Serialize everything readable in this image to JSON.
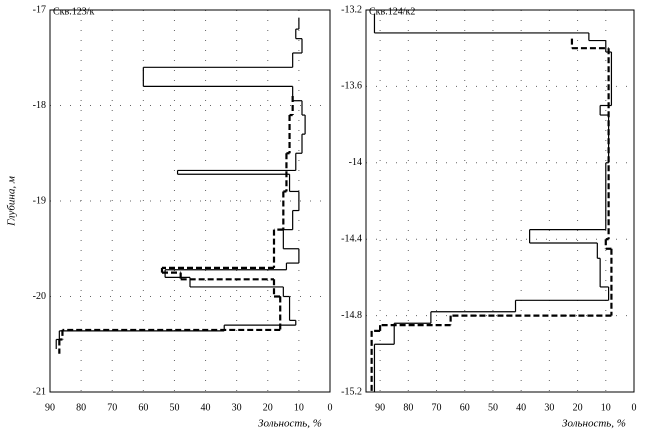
{
  "chart_data": [
    {
      "type": "step",
      "title": "Скв.123/к",
      "ylabel": "Глубина, м",
      "xlabel": "Зольность, %",
      "xlim": [
        90,
        0
      ],
      "ylim": [
        -21,
        -17
      ],
      "xticks": [
        90,
        80,
        70,
        60,
        50,
        40,
        30,
        20,
        10,
        0
      ],
      "yticks": [
        -17,
        -18,
        -19,
        -20,
        -21
      ],
      "grid": true,
      "series": [
        {
          "line_style": "solid",
          "color": "#000000",
          "bins": [
            -17.08,
            -17.2,
            -17.3,
            -17.45,
            -17.6,
            -17.8,
            -17.95,
            -18.1,
            -18.3,
            -18.5,
            -18.68,
            -18.72,
            -18.9,
            -19.1,
            -19.3,
            -19.5,
            -19.65,
            -19.72,
            -19.8,
            -19.9,
            -20.0,
            -20.25,
            -20.3,
            -20.36,
            -20.45,
            -20.55
          ],
          "values": [
            10,
            11,
            9,
            12,
            60,
            12,
            9,
            8,
            9,
            11,
            49,
            13,
            10,
            12,
            15,
            10,
            14,
            53,
            45,
            15,
            13,
            11,
            34,
            87,
            88
          ]
        },
        {
          "line_style": "dashed",
          "color": "#000000",
          "bins": [
            -17.9,
            -18.1,
            -18.5,
            -18.9,
            -19.3,
            -19.7,
            -19.75,
            -19.82,
            -20.0,
            -20.35,
            -20.45,
            -20.6
          ],
          "values": [
            12,
            13,
            14,
            15,
            18,
            54,
            48,
            18,
            16,
            86,
            87
          ]
        }
      ]
    },
    {
      "type": "step",
      "title": "Скв.124/к2",
      "xlabel": "Зольность, %",
      "xlim": [
        95,
        0
      ],
      "ylim": [
        -15.2,
        -13.2
      ],
      "xticks": [
        90,
        80,
        70,
        60,
        50,
        40,
        30,
        20,
        10,
        0
      ],
      "yticks": [
        -13.2,
        -13.6,
        -14,
        -14.4,
        -14.8,
        -15.2
      ],
      "grid": true,
      "series": [
        {
          "line_style": "solid",
          "color": "#000000",
          "bins": [
            -13.22,
            -13.32,
            -13.36,
            -13.42,
            -13.7,
            -13.75,
            -14.0,
            -14.35,
            -14.42,
            -14.5,
            -14.65,
            -14.72,
            -14.78,
            -14.84,
            -14.95,
            -15.2
          ],
          "values": [
            92,
            16,
            10,
            8,
            12,
            9,
            10,
            37,
            13,
            12,
            9,
            42,
            72,
            85,
            92
          ]
        },
        {
          "line_style": "dashed",
          "color": "#000000",
          "bins": [
            -13.35,
            -13.4,
            -14.4,
            -14.45,
            -14.8,
            -14.85,
            -14.88,
            -15.2
          ],
          "values": [
            22,
            9,
            10,
            8,
            65,
            90,
            93
          ]
        }
      ]
    }
  ]
}
